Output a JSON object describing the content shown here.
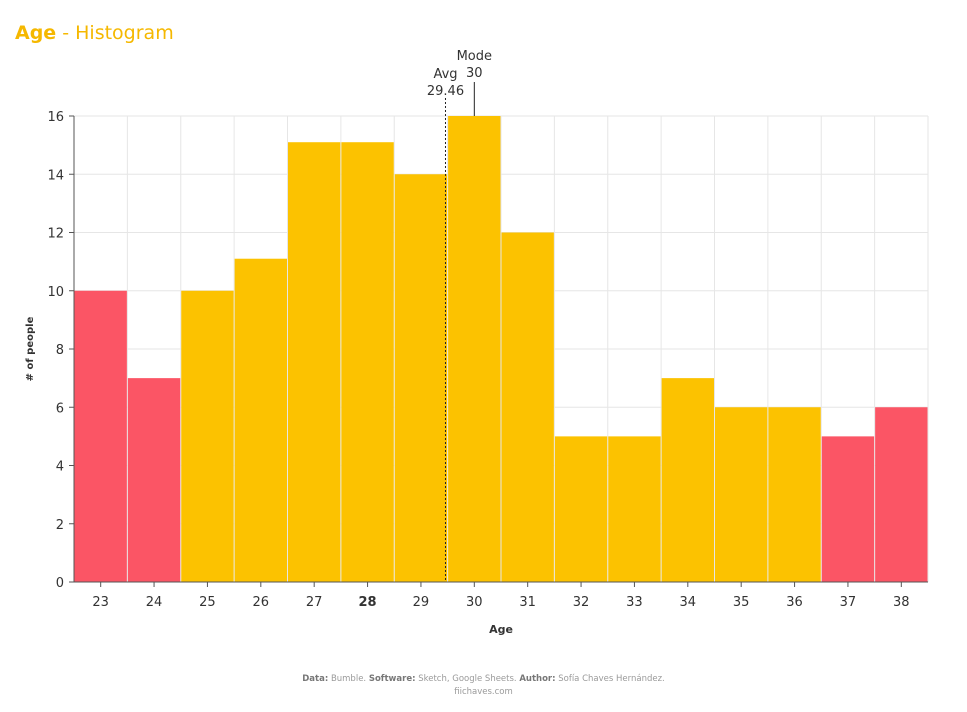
{
  "header": {
    "title_main": "Age",
    "title_sep": " - ",
    "title_sub": "Histogram"
  },
  "chart_data": {
    "type": "bar",
    "categories": [
      "23",
      "24",
      "25",
      "26",
      "27",
      "28",
      "29",
      "30",
      "31",
      "32",
      "33",
      "34",
      "35",
      "36",
      "37",
      "38"
    ],
    "values": [
      10,
      7,
      10,
      11.1,
      15.1,
      15.1,
      14,
      16,
      12,
      5,
      5,
      7,
      6,
      6,
      5,
      6
    ],
    "highlight": [
      "red",
      "red",
      "yellow",
      "yellow",
      "yellow",
      "yellow",
      "yellow",
      "yellow",
      "yellow",
      "yellow",
      "yellow",
      "yellow",
      "yellow",
      "yellow",
      "red",
      "red"
    ],
    "bold_category": "28",
    "xlabel": "Age",
    "ylabel": "# of people",
    "ylim": [
      0,
      16
    ],
    "yticks": [
      0,
      2,
      4,
      6,
      8,
      10,
      12,
      14,
      16
    ],
    "grid": true,
    "annotations": {
      "avg": {
        "label": "Avg",
        "value_text": "29.46",
        "x": 29.46
      },
      "mode": {
        "label": "Mode",
        "value_text": "30",
        "x": 30
      }
    },
    "colors": {
      "yellow": "#fcc200",
      "red": "#fb5565",
      "grid": "#e6e6e6",
      "axis": "#555555"
    }
  },
  "credits": {
    "data_label": "Data:",
    "data_value": "Bumble.",
    "software_label": "Software:",
    "software_value": "Sketch, Google Sheets.",
    "author_label": "Author:",
    "author_value": "Sofía Chaves Hernández.",
    "site": "fiichaves.com"
  }
}
